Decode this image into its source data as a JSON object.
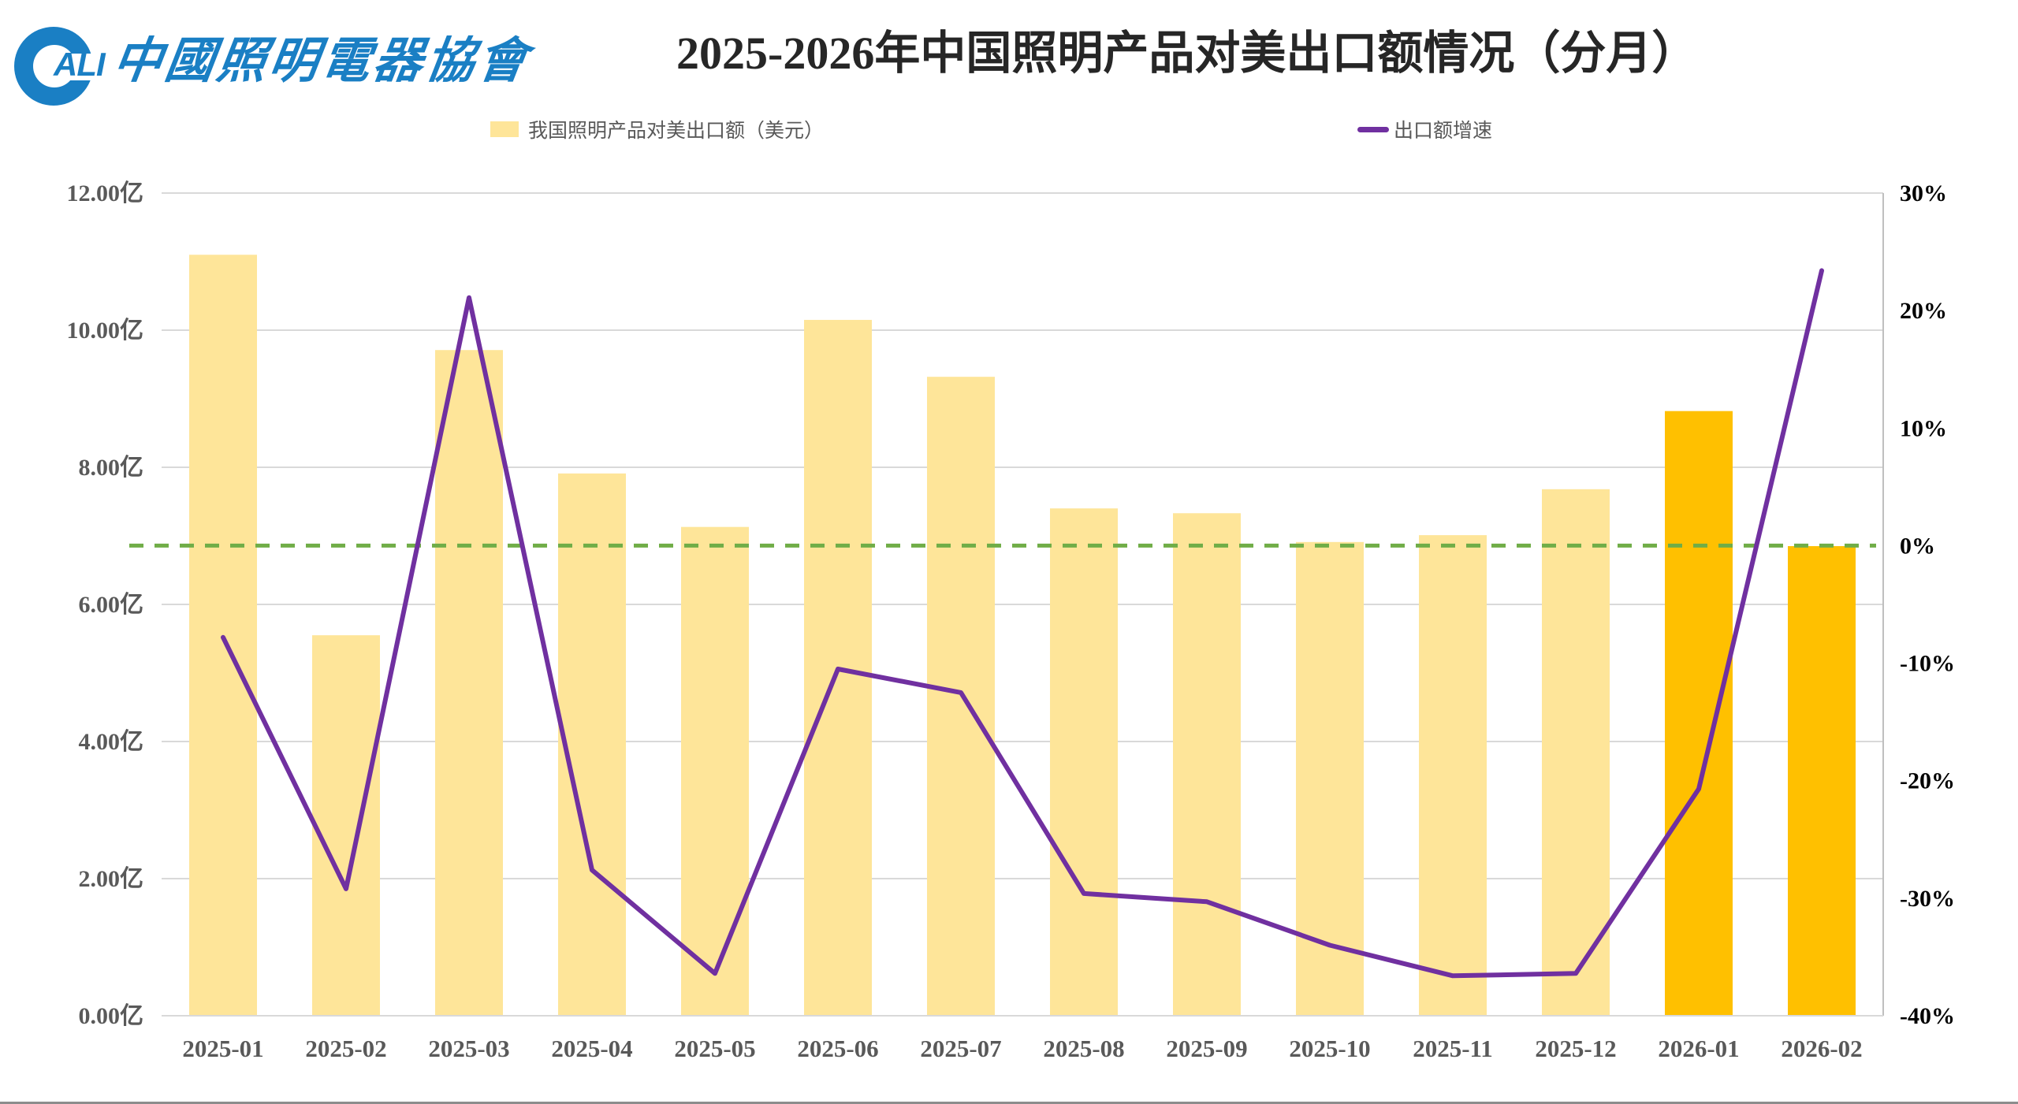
{
  "header": {
    "logo_mark": "ALI",
    "logo_text": "中國照明電器協會",
    "title": "2025-2026年中国照明产品对美出口额情况（分月）"
  },
  "legend": {
    "bar_label": "我国照明产品对美出口额（美元）",
    "line_label": "出口额增速"
  },
  "colors": {
    "bar_normal": "#fee599",
    "bar_highlight": "#ffc000",
    "line": "#7030a0",
    "zero_line": "#70ad47",
    "grid": "#d9d9d9",
    "logo": "#1a7fc4"
  },
  "chart_data": {
    "type": "bar+line",
    "title": "2025-2026年中国照明产品对美出口额情况（分月）",
    "categories": [
      "2025-01",
      "2025-02",
      "2025-03",
      "2025-04",
      "2025-05",
      "2025-06",
      "2025-07",
      "2025-08",
      "2025-09",
      "2025-10",
      "2025-11",
      "2025-12",
      "2026-01",
      "2026-02"
    ],
    "series": [
      {
        "name": "我国照明产品对美出口额（美元）",
        "type": "bar",
        "axis": "left",
        "unit": "亿",
        "values": [
          11.1,
          5.55,
          9.71,
          7.91,
          7.13,
          10.15,
          9.32,
          7.4,
          7.33,
          6.91,
          7.01,
          7.68,
          8.82,
          6.85
        ],
        "highlight": [
          false,
          false,
          false,
          false,
          false,
          false,
          false,
          false,
          false,
          false,
          false,
          false,
          true,
          true
        ]
      },
      {
        "name": "出口额增速",
        "type": "line",
        "axis": "right",
        "unit": "%",
        "values": [
          -7.8,
          -29.2,
          21.1,
          -27.6,
          -36.4,
          -10.5,
          -12.5,
          -29.6,
          -30.3,
          -34.0,
          -36.6,
          -36.4,
          -20.7,
          23.4
        ]
      }
    ],
    "reference_line": {
      "axis": "right",
      "value": 0,
      "style": "dashed",
      "color": "#70ad47"
    },
    "left_axis": {
      "ylim": [
        0,
        12
      ],
      "ticks": [
        "0.00亿",
        "2.00亿",
        "4.00亿",
        "6.00亿",
        "8.00亿",
        "10.00亿",
        "12.00亿"
      ]
    },
    "right_axis": {
      "ylim": [
        -40,
        30
      ],
      "ticks": [
        "-40%",
        "-30%",
        "-20%",
        "-10%",
        "0%",
        "10%",
        "20%",
        "30%"
      ]
    },
    "xlabel": "",
    "ylabel": "",
    "grid": true,
    "legend_position": "top"
  }
}
